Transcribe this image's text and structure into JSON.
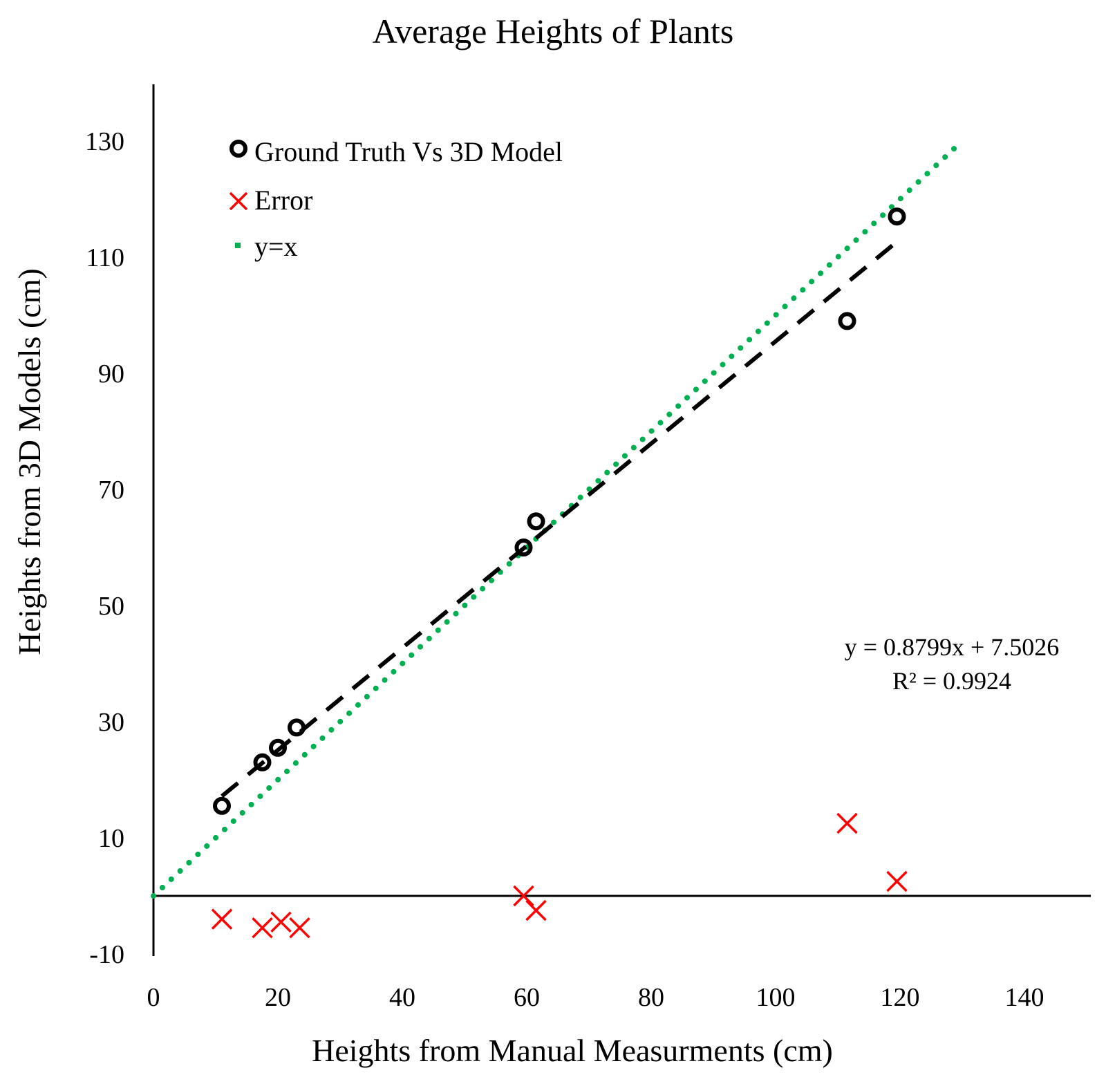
{
  "chart_data": {
    "type": "scatter",
    "title": "Average Heights of Plants",
    "xlabel": "Heights from Manual Measurments (cm)",
    "ylabel": "Heights from 3D Models (cm)",
    "xlim": [
      0,
      150
    ],
    "ylim": [
      -10,
      140
    ],
    "xticks": [
      0,
      20,
      40,
      60,
      80,
      100,
      120,
      140
    ],
    "yticks": [
      -10,
      10,
      30,
      50,
      70,
      90,
      110,
      130
    ],
    "grid": false,
    "legend_position": "top-left",
    "series": [
      {
        "name": "Ground Truth Vs 3D Model",
        "marker": "circle",
        "color": "#000000",
        "points": [
          [
            11,
            15.5
          ],
          [
            17.5,
            23
          ],
          [
            20,
            25.5
          ],
          [
            23,
            29
          ],
          [
            59.5,
            60
          ],
          [
            61.5,
            64.5
          ],
          [
            111.5,
            99
          ],
          [
            119.5,
            117
          ]
        ]
      },
      {
        "name": "Error",
        "marker": "x",
        "color": "#ff0000",
        "points": [
          [
            11,
            -4
          ],
          [
            17.5,
            -5.5
          ],
          [
            20.5,
            -4.5
          ],
          [
            23.5,
            -5.5
          ],
          [
            59.5,
            0
          ],
          [
            61.5,
            -2.5
          ],
          [
            111.5,
            12.5
          ],
          [
            119.5,
            2.5
          ]
        ]
      },
      {
        "name": "y=x",
        "style": "dotted",
        "color": "#00b050",
        "points": [
          [
            0,
            0
          ],
          [
            130,
            130
          ]
        ]
      }
    ],
    "trendline": {
      "slope": 0.8799,
      "intercept": 7.5026,
      "x_range": [
        11,
        119.5
      ],
      "color": "#000000",
      "style": "dashed"
    },
    "annotations": {
      "equation": "y = 0.8799x + 7.5026",
      "r_squared": "R² = 0.9924"
    }
  }
}
